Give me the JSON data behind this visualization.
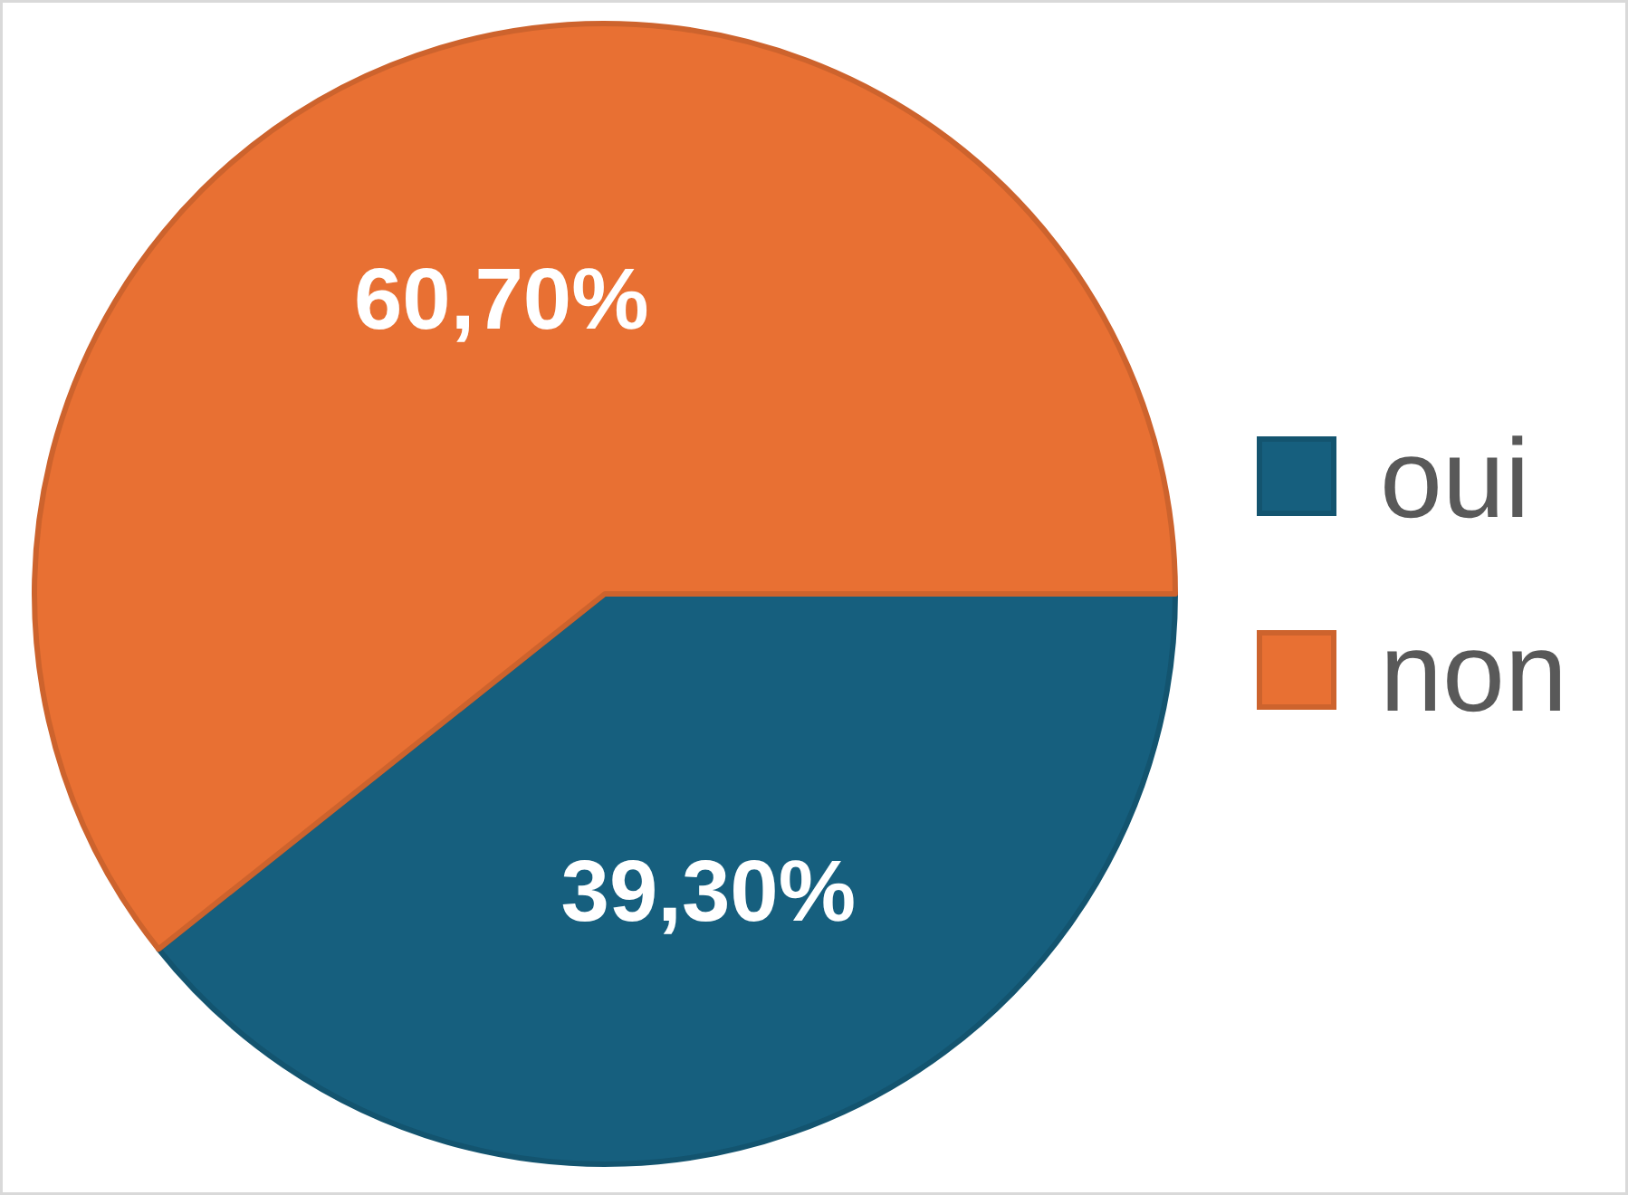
{
  "chart_data": {
    "type": "pie",
    "categories": [
      "oui",
      "non"
    ],
    "values": [
      39.3,
      60.7
    ],
    "colors": [
      "#165f7e",
      "#e87033"
    ],
    "value_labels": [
      "39,30%",
      "60,70%"
    ],
    "legend": "right"
  }
}
